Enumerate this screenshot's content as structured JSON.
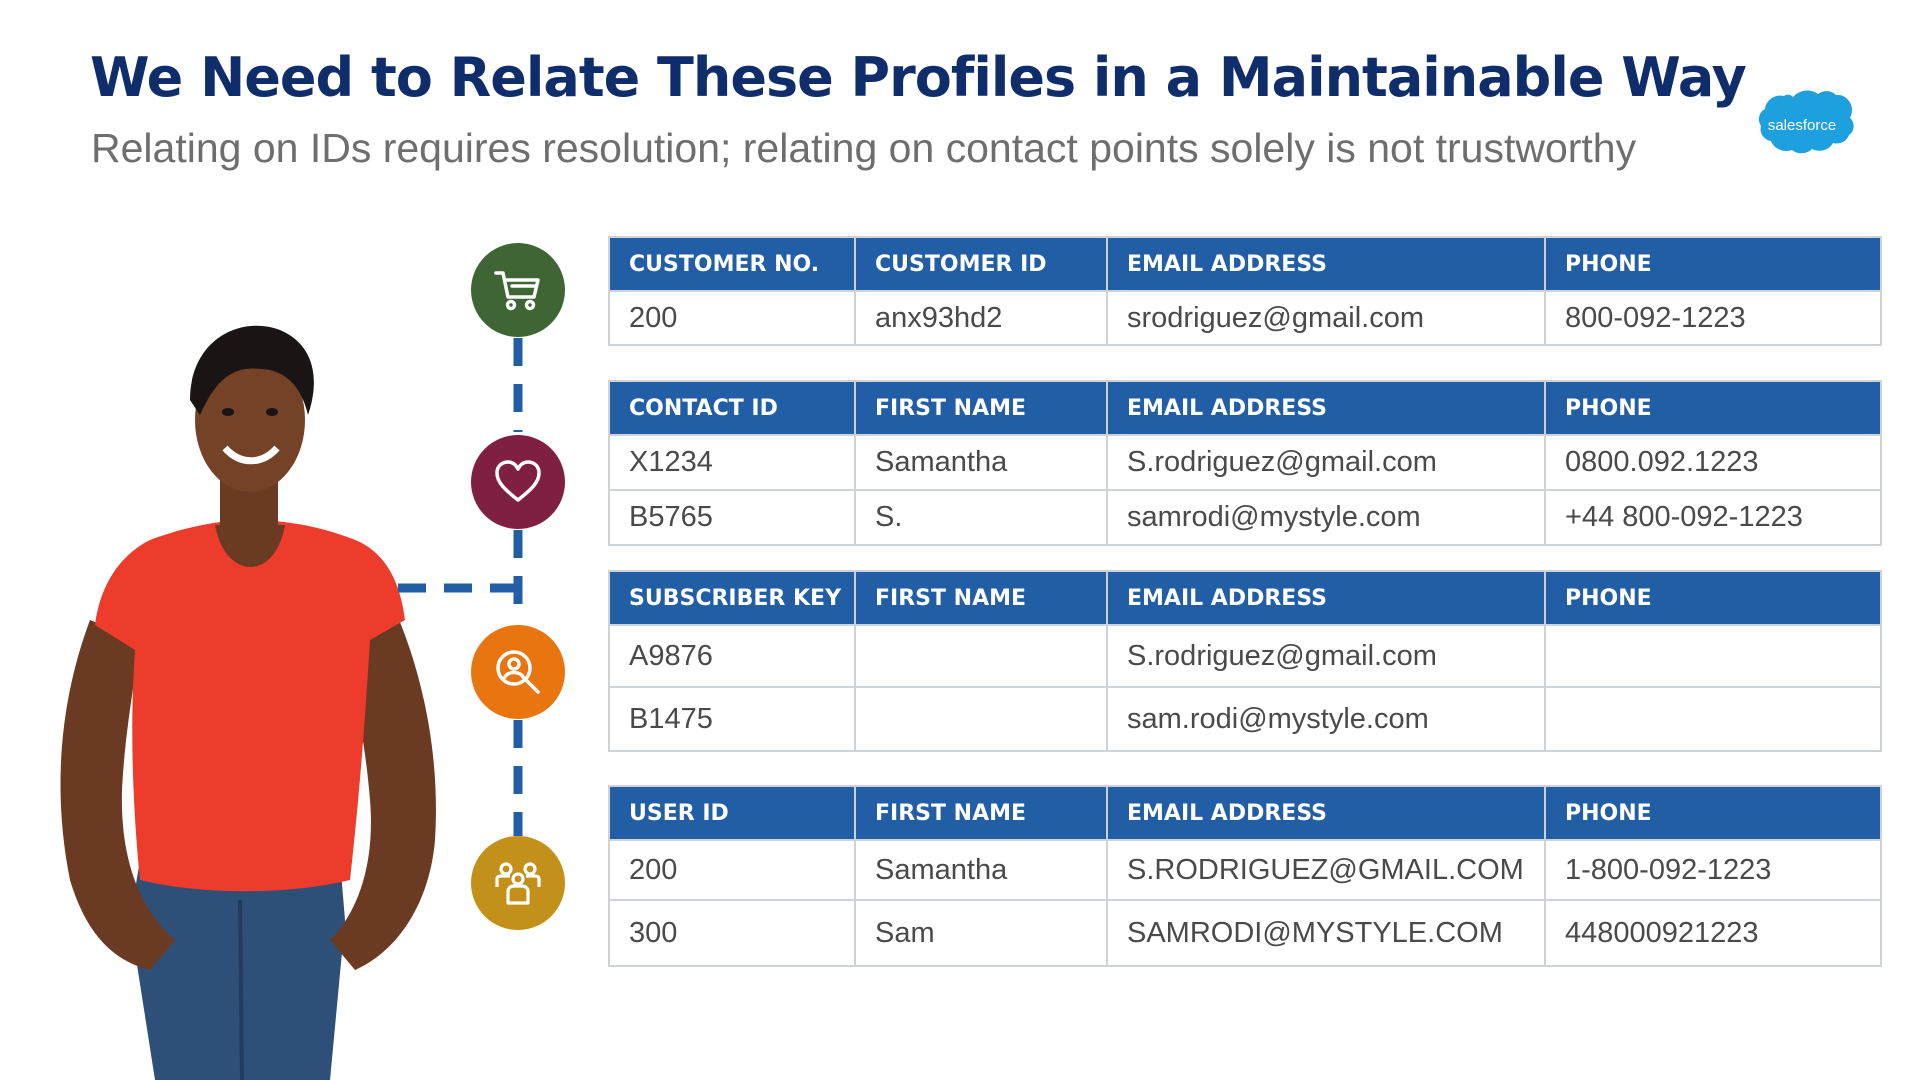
{
  "title": "We Need to Relate These Profiles in a Maintainable Way",
  "subtitle": "Relating on IDs requires resolution; relating on contact points solely is not trustworthy",
  "logo": {
    "text": "salesforce",
    "color": "#1ea0de"
  },
  "colors": {
    "header_bg": "#225ea6",
    "title": "#0f2d6b",
    "cart_circle": "#3f6534",
    "heart_circle": "#7f1f41",
    "search_circle": "#e97510",
    "group_circle": "#c3901a",
    "connector": "#225ea6"
  },
  "icons": [
    "cart-icon",
    "heart-icon",
    "search-person-icon",
    "group-icon"
  ],
  "tables": [
    {
      "headers": [
        "CUSTOMER NO.",
        "CUSTOMER ID",
        "EMAIL ADDRESS",
        "PHONE"
      ],
      "rows": [
        [
          "200",
          "anx93hd2",
          "srodriguez@gmail.com",
          "800-092-1223"
        ]
      ]
    },
    {
      "headers": [
        "CONTACT ID",
        "FIRST NAME",
        "EMAIL ADDRESS",
        "PHONE"
      ],
      "rows": [
        [
          "X1234",
          "Samantha",
          "S.rodriguez@gmail.com",
          "0800.092.1223"
        ],
        [
          "B5765",
          "S.",
          "samrodi@mystyle.com",
          "+44 800-092-1223"
        ]
      ]
    },
    {
      "headers": [
        "SUBSCRIBER KEY",
        "FIRST NAME",
        "EMAIL ADDRESS",
        "PHONE"
      ],
      "rows": [
        [
          "A9876",
          "",
          "S.rodriguez@gmail.com",
          ""
        ],
        [
          "B1475",
          "",
          "sam.rodi@mystyle.com",
          ""
        ]
      ]
    },
    {
      "headers": [
        "USER ID",
        "FIRST NAME",
        "EMAIL ADDRESS",
        "PHONE"
      ],
      "rows": [
        [
          "200",
          "Samantha",
          "S.RODRIGUEZ@GMAIL.COM",
          "1-800-092-1223"
        ],
        [
          "300",
          "Sam",
          "SAMRODI@MYSTYLE.COM",
          "448000921223"
        ]
      ]
    }
  ]
}
